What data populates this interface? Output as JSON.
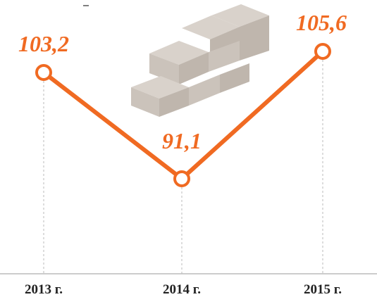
{
  "chart_data": {
    "type": "line",
    "categories": [
      "2013 г.",
      "2014 г.",
      "2015 г."
    ],
    "series": [
      {
        "color": "#f06a22",
        "values": [
          103.2,
          91.1,
          105.6
        ],
        "value_labels": [
          "103,2",
          "91,1",
          "105,6"
        ]
      }
    ]
  }
}
